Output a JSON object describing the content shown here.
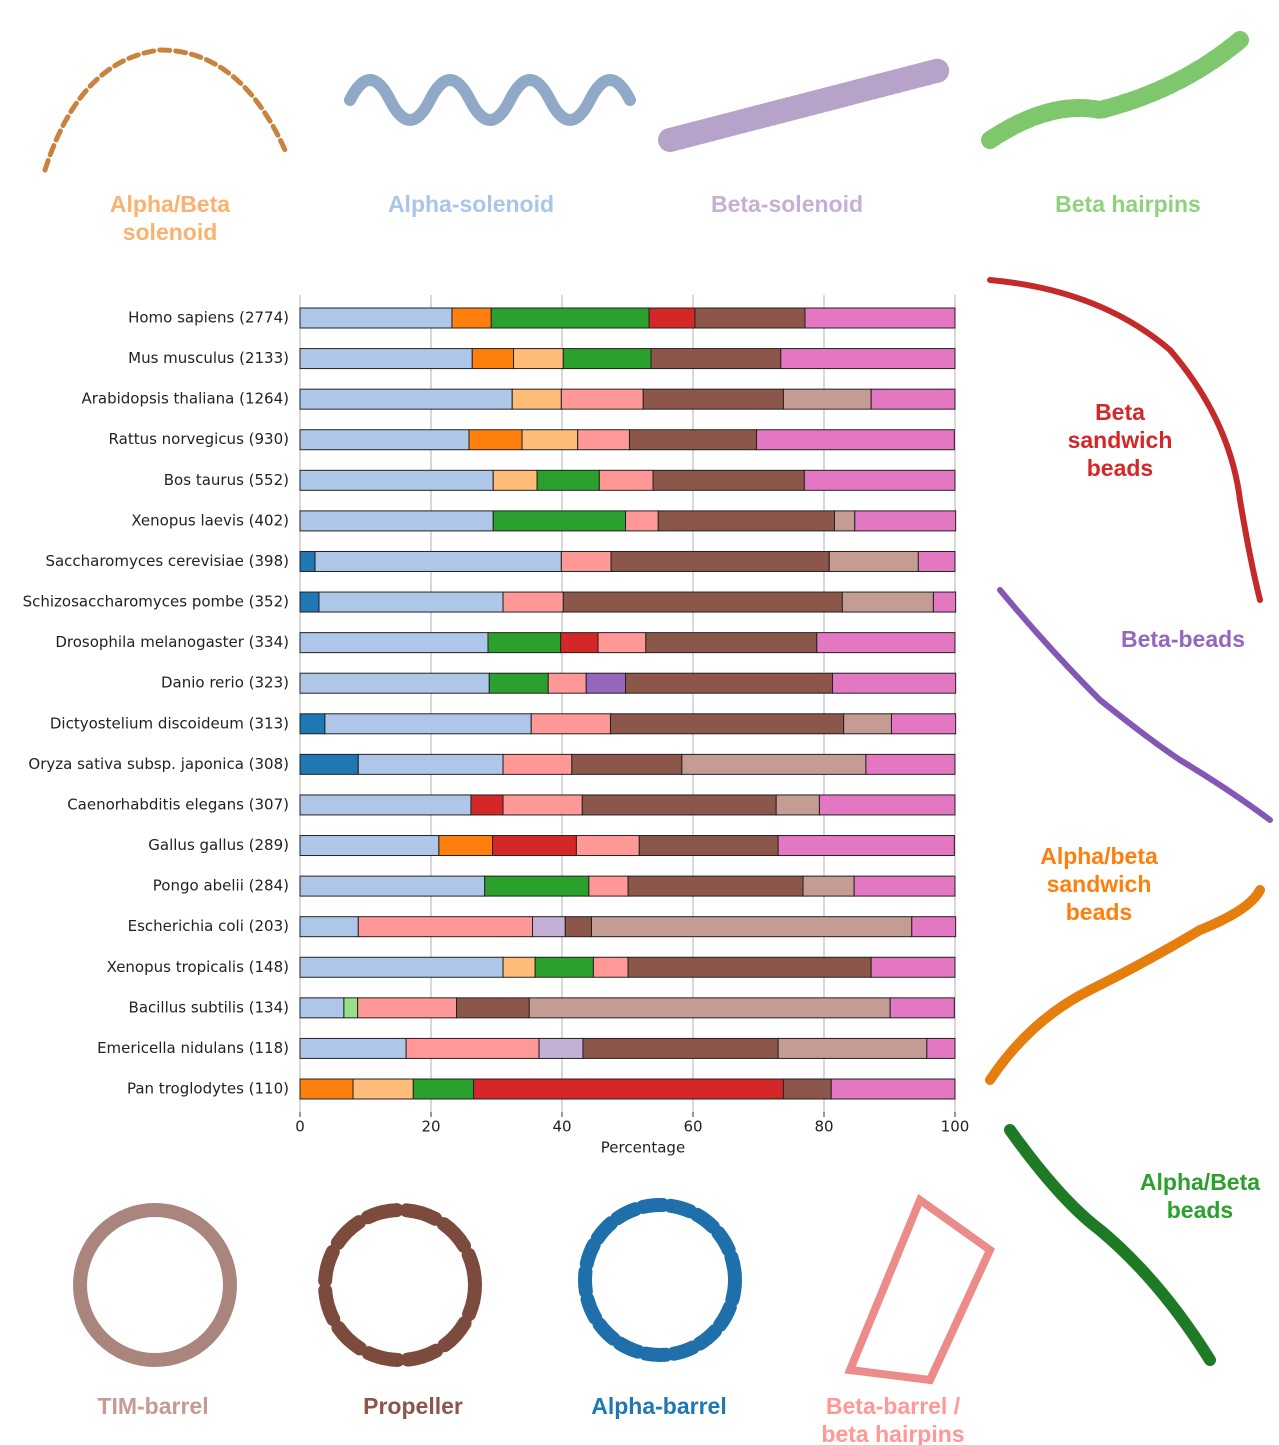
{
  "chart_data": {
    "type": "bar",
    "stacked": true,
    "categories": [
      "Homo sapiens (2774)",
      "Mus musculus (2133)",
      "Arabidopsis thaliana (1264)",
      "Rattus norvegicus (930)",
      "Bos taurus (552)",
      "Xenopus laevis (402)",
      "Saccharomyces cerevisiae (398)",
      "Schizosaccharomyces pombe (352)",
      "Drosophila melanogaster (334)",
      "Danio rerio (323)",
      "Dictyostelium discoideum (313)",
      "Oryza sativa subsp. japonica (308)",
      "Caenorhabditis elegans (307)",
      "Gallus gallus (289)",
      "Pongo abelii (284)",
      "Escherichia coli (203)",
      "Xenopus tropicalis (148)",
      "Bacillus subtilis (134)",
      "Emericella nidulans (118)",
      "Pan troglodytes (110)"
    ],
    "series": [
      {
        "name": "Alpha-barrel",
        "color": "#1f77b4",
        "values": [
          0,
          0,
          0,
          0,
          0,
          0,
          2.3,
          2.9,
          0,
          0,
          3.8,
          8.9,
          0,
          0,
          0,
          0,
          0,
          0,
          0,
          0
        ]
      },
      {
        "name": "Alpha-solenoid",
        "color": "#aec7e8",
        "values": [
          23.2,
          26.3,
          32.4,
          25.8,
          29.5,
          29.5,
          37.6,
          28.1,
          28.7,
          28.9,
          31.5,
          22.1,
          26.1,
          21.2,
          28.2,
          8.9,
          31.0,
          6.7,
          16.2,
          0
        ]
      },
      {
        "name": "Alpha/beta sandwich beads",
        "color": "#ff7f0e",
        "values": [
          6.0,
          6.3,
          0,
          8.1,
          0,
          0,
          0,
          0,
          0,
          0,
          0,
          0,
          0,
          8.2,
          0,
          0,
          0,
          0,
          0,
          8.1
        ]
      },
      {
        "name": "Alpha/Beta solenoid",
        "color": "#ffbb78",
        "values": [
          0,
          7.6,
          7.5,
          8.5,
          6.7,
          0,
          0,
          0,
          0,
          0,
          0,
          0,
          0,
          0,
          0,
          0,
          4.9,
          0,
          0,
          9.2
        ]
      },
      {
        "name": "Alpha/Beta beads",
        "color": "#2ca02c",
        "values": [
          24.1,
          13.4,
          0,
          0,
          9.5,
          20.2,
          0,
          0,
          11.1,
          9.0,
          0,
          0,
          0,
          0,
          15.9,
          0,
          8.9,
          0,
          0,
          9.2
        ]
      },
      {
        "name": "Beta hairpins",
        "color": "#98df8a",
        "values": [
          0,
          0,
          0,
          0,
          0,
          0,
          0,
          0,
          0,
          0,
          0,
          0,
          0,
          0,
          0,
          0,
          0,
          2.1,
          0,
          0
        ]
      },
      {
        "name": "Beta sandwich beads",
        "color": "#d62728",
        "values": [
          7.0,
          0,
          0,
          0,
          0,
          0,
          0,
          0,
          5.7,
          0,
          0,
          0,
          4.9,
          12.8,
          0,
          0,
          0,
          0,
          0,
          47.3
        ]
      },
      {
        "name": "Beta-barrel / beta hairpins",
        "color": "#ff9896",
        "values": [
          0,
          0,
          12.5,
          7.9,
          8.2,
          5.0,
          7.6,
          9.2,
          7.3,
          5.8,
          12.1,
          10.5,
          12.1,
          9.6,
          6.0,
          26.6,
          5.3,
          15.1,
          20.3,
          0
        ]
      },
      {
        "name": "Beta-solenoid",
        "color": "#c5b0d5",
        "values": [
          0,
          0,
          0,
          0,
          0,
          0,
          0,
          0,
          0,
          0,
          0,
          0,
          0,
          0,
          0,
          5.0,
          0,
          0,
          6.7,
          0
        ]
      },
      {
        "name": "Beta-beads",
        "color": "#9467bd",
        "values": [
          0,
          0,
          0,
          0,
          0,
          0,
          0,
          0,
          0,
          6.0,
          0,
          0,
          0,
          0,
          0,
          0,
          0,
          0,
          0,
          0
        ]
      },
      {
        "name": "Propeller",
        "color": "#8c564b",
        "values": [
          16.8,
          19.8,
          21.4,
          19.4,
          23.1,
          26.9,
          33.3,
          42.6,
          26.1,
          31.6,
          35.6,
          16.8,
          29.6,
          21.2,
          26.7,
          4.0,
          37.1,
          11.1,
          29.8,
          7.3
        ]
      },
      {
        "name": "TIM-barrel",
        "color": "#c49c94",
        "values": [
          0,
          0,
          13.4,
          0,
          0,
          3.1,
          13.6,
          13.9,
          0,
          0,
          7.3,
          28.1,
          6.6,
          0,
          7.8,
          48.9,
          0,
          55.1,
          22.7,
          0
        ]
      },
      {
        "name": null,
        "color": "#e377c2",
        "values": [
          22.9,
          26.6,
          12.8,
          30.2,
          23.0,
          15.4,
          5.6,
          3.4,
          21.1,
          18.8,
          9.8,
          13.6,
          20.7,
          26.9,
          15.4,
          6.7,
          12.8,
          9.8,
          4.3,
          18.9
        ]
      }
    ],
    "xlabel": "Percentage",
    "xlim": [
      0,
      100
    ],
    "xticks": [
      0,
      20,
      40,
      60,
      80,
      100
    ],
    "grid": true
  }
}
